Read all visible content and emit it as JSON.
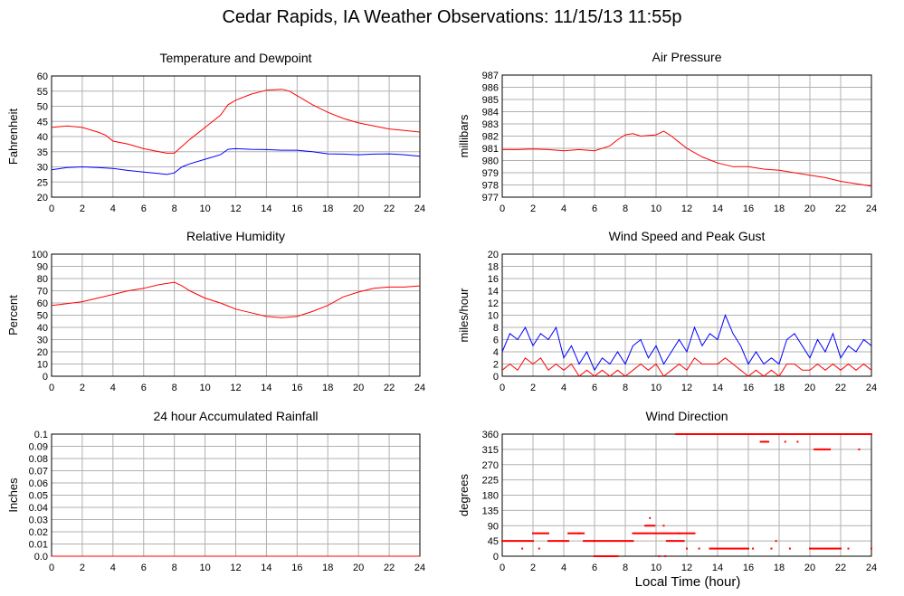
{
  "page": {
    "title": "Cedar Rapids, IA Weather Observations: 11/15/13 11:55p",
    "x_axis_title": "Local Time (hour)"
  },
  "colors": {
    "red": "#ff0000",
    "blue": "#0000ff",
    "grid": "#b0b0b0",
    "frame": "#000000"
  },
  "chart_data": [
    {
      "id": "temp",
      "type": "line",
      "title": "Temperature and Dewpoint",
      "ylabel": "Fahrenheit",
      "xlim": [
        0,
        24
      ],
      "xticks": [
        0,
        2,
        4,
        6,
        8,
        10,
        12,
        14,
        16,
        18,
        20,
        22,
        24
      ],
      "ylim": [
        20,
        60
      ],
      "yticks": [
        "20",
        "25",
        "30",
        "35",
        "40",
        "45",
        "50",
        "55",
        "60"
      ],
      "grid": true,
      "series": [
        {
          "color": "red",
          "x": [
            0,
            1,
            2,
            3,
            3.5,
            4,
            5,
            6,
            7,
            7.5,
            8,
            9,
            10,
            11,
            11.5,
            12,
            13,
            14,
            15,
            15.5,
            16,
            17,
            18,
            19,
            20,
            21,
            22,
            23,
            24
          ],
          "y": [
            43,
            43.5,
            43,
            41.5,
            40.5,
            38.5,
            37.5,
            36,
            35,
            34.5,
            34.5,
            39,
            43,
            47,
            50.5,
            52,
            54,
            55.3,
            55.6,
            55,
            53.5,
            50.5,
            48,
            46,
            44.5,
            43.5,
            42.5,
            42,
            41.5
          ]
        },
        {
          "color": "blue",
          "x": [
            0,
            1,
            2,
            3,
            4,
            5,
            6,
            7,
            7.5,
            8,
            8.5,
            9,
            10,
            11,
            11.5,
            12,
            13,
            14,
            15,
            16,
            17,
            18,
            19,
            20,
            21,
            22,
            23,
            24
          ],
          "y": [
            29,
            29.8,
            30,
            29.8,
            29.5,
            28.8,
            28.3,
            27.8,
            27.5,
            28,
            30,
            31,
            32.5,
            34,
            35.8,
            36,
            35.8,
            35.7,
            35.5,
            35.5,
            35,
            34.3,
            34.2,
            34,
            34.2,
            34.3,
            34,
            33.5
          ]
        }
      ]
    },
    {
      "id": "pressure",
      "type": "line",
      "title": "Air Pressure",
      "ylabel": "millibars",
      "xlim": [
        0,
        24
      ],
      "xticks": [
        0,
        2,
        4,
        6,
        8,
        10,
        12,
        14,
        16,
        18,
        20,
        22,
        24
      ],
      "ylim": [
        977,
        987
      ],
      "yticks": [
        "977",
        "978",
        "979",
        "980",
        "981",
        "982",
        "983",
        "984",
        "985",
        "986",
        "987"
      ],
      "grid": true,
      "series": [
        {
          "color": "red",
          "x": [
            0,
            1,
            2,
            3,
            4,
            5,
            6,
            7,
            7.5,
            8,
            8.5,
            9,
            10,
            10.5,
            11,
            11.5,
            12,
            13,
            14,
            15,
            16,
            17,
            18,
            19,
            20,
            21,
            22,
            23,
            24
          ],
          "y": [
            980.9,
            980.9,
            980.95,
            980.9,
            980.8,
            980.9,
            980.8,
            981.2,
            981.7,
            982.1,
            982.2,
            982.0,
            982.1,
            982.4,
            982.0,
            981.5,
            981.0,
            980.3,
            979.8,
            979.5,
            979.5,
            979.3,
            979.2,
            979.0,
            978.8,
            978.6,
            978.3,
            978.1,
            977.9
          ]
        }
      ]
    },
    {
      "id": "humidity",
      "type": "line",
      "title": "Relative Humidity",
      "ylabel": "Percent",
      "xlim": [
        0,
        24
      ],
      "xticks": [
        0,
        2,
        4,
        6,
        8,
        10,
        12,
        14,
        16,
        18,
        20,
        22,
        24
      ],
      "ylim": [
        0,
        100
      ],
      "yticks": [
        "0",
        "10",
        "20",
        "30",
        "40",
        "50",
        "60",
        "70",
        "80",
        "90",
        "100"
      ],
      "grid": true,
      "series": [
        {
          "color": "red",
          "x": [
            0,
            1,
            2,
            3,
            4,
            5,
            6,
            7,
            8,
            8.5,
            9,
            10,
            11,
            12,
            13,
            14,
            15,
            16,
            17,
            18,
            19,
            20,
            21,
            22,
            23,
            24
          ],
          "y": [
            58,
            59.5,
            61,
            64,
            67,
            70,
            72,
            75,
            77,
            74,
            70,
            64,
            60,
            55,
            52,
            49,
            48,
            49,
            53,
            58,
            65,
            69,
            72,
            73,
            73,
            74
          ]
        }
      ]
    },
    {
      "id": "wind",
      "type": "line",
      "title": "Wind Speed and Peak Gust",
      "ylabel": "miles/hour",
      "xlim": [
        0,
        24
      ],
      "xticks": [
        0,
        2,
        4,
        6,
        8,
        10,
        12,
        14,
        16,
        18,
        20,
        22,
        24
      ],
      "ylim": [
        0,
        20
      ],
      "yticks": [
        "0",
        "2",
        "4",
        "6",
        "8",
        "10",
        "12",
        "14",
        "16",
        "18",
        "20"
      ],
      "grid": true,
      "series": [
        {
          "color": "blue",
          "x": [
            0,
            0.5,
            1,
            1.5,
            2,
            2.5,
            3,
            3.5,
            4,
            4.5,
            5,
            5.5,
            6,
            6.5,
            7,
            7.5,
            8,
            8.5,
            9,
            9.5,
            10,
            10.5,
            11,
            11.5,
            12,
            12.5,
            13,
            13.5,
            14,
            14.5,
            15,
            15.5,
            16,
            16.5,
            17,
            17.5,
            18,
            18.5,
            19,
            19.5,
            20,
            20.5,
            21,
            21.5,
            22,
            22.5,
            23,
            23.5,
            24
          ],
          "y": [
            4,
            7,
            6,
            8,
            5,
            7,
            6,
            8,
            3,
            5,
            2,
            4,
            1,
            3,
            2,
            4,
            2,
            5,
            6,
            3,
            5,
            2,
            4,
            6,
            4,
            8,
            5,
            7,
            6,
            10,
            7,
            5,
            2,
            4,
            2,
            3,
            2,
            6,
            7,
            5,
            3,
            6,
            4,
            7,
            3,
            5,
            4,
            6,
            5
          ]
        },
        {
          "color": "red",
          "x": [
            0,
            0.5,
            1,
            1.5,
            2,
            2.5,
            3,
            3.5,
            4,
            4.5,
            5,
            5.5,
            6,
            6.5,
            7,
            7.5,
            8,
            8.5,
            9,
            9.5,
            10,
            10.5,
            11,
            11.5,
            12,
            12.5,
            13,
            13.5,
            14,
            14.5,
            15,
            15.5,
            16,
            16.5,
            17,
            17.5,
            18,
            18.5,
            19,
            19.5,
            20,
            20.5,
            21,
            21.5,
            22,
            22.5,
            23,
            23.5,
            24
          ],
          "y": [
            1,
            2,
            1,
            3,
            2,
            3,
            1,
            2,
            1,
            2,
            0,
            1,
            0,
            1,
            0,
            1,
            0,
            1,
            2,
            1,
            2,
            0,
            1,
            2,
            1,
            3,
            2,
            2,
            2,
            3,
            2,
            1,
            0,
            1,
            0,
            1,
            0,
            2,
            2,
            1,
            1,
            2,
            1,
            2,
            1,
            2,
            1,
            2,
            1
          ]
        }
      ]
    },
    {
      "id": "rain",
      "type": "line",
      "title": "24 hour Accumulated Rainfall",
      "ylabel": "Inches",
      "xlim": [
        0,
        24
      ],
      "xticks": [
        0,
        2,
        4,
        6,
        8,
        10,
        12,
        14,
        16,
        18,
        20,
        22,
        24
      ],
      "ylim": [
        0,
        0.1
      ],
      "yticks": [
        "0.0",
        "0.01",
        "0.02",
        "0.03",
        "0.04",
        "0.05",
        "0.06",
        "0.07",
        "0.08",
        "0.09",
        "0.1"
      ],
      "grid": true,
      "series": [
        {
          "color": "red",
          "x": [
            0,
            24
          ],
          "y": [
            0,
            0
          ]
        }
      ]
    },
    {
      "id": "direction",
      "type": "scatter",
      "title": "Wind Direction",
      "ylabel": "degrees",
      "xlim": [
        0,
        24
      ],
      "xticks": [
        0,
        2,
        4,
        6,
        8,
        10,
        12,
        14,
        16,
        18,
        20,
        22,
        24
      ],
      "ylim": [
        0,
        360
      ],
      "yticks": [
        "0",
        "45",
        "90",
        "135",
        "180",
        "225",
        "270",
        "315",
        "360"
      ],
      "grid": true,
      "series": [
        {
          "color": "red",
          "segments": [
            {
              "x": [
                0,
                2.0
              ],
              "y": 45
            },
            {
              "x": [
                2.0,
                3.0
              ],
              "y": 67.5
            },
            {
              "x": [
                3.0,
                4.3
              ],
              "y": 45
            },
            {
              "x": [
                4.3,
                5.3
              ],
              "y": 67.5
            },
            {
              "x": [
                5.3,
                6.0
              ],
              "y": 45
            },
            {
              "x": [
                6.0,
                8.5
              ],
              "y": 45
            },
            {
              "x": [
                6.0,
                7.5
              ],
              "y": 0
            },
            {
              "x": [
                8.5,
                11.5
              ],
              "y": 67.5
            },
            {
              "x": [
                9.3,
                9.9
              ],
              "y": 90
            },
            {
              "x": [
                10.7,
                11.8
              ],
              "y": 45
            },
            {
              "x": [
                11.5,
                12.5
              ],
              "y": 67.5
            },
            {
              "x": [
                11.3,
                18.2
              ],
              "y": 360
            },
            {
              "x": [
                13.5,
                16.0
              ],
              "y": 22.5
            },
            {
              "x": [
                16.8,
                17.3
              ],
              "y": 337.5
            },
            {
              "x": [
                18.2,
                24
              ],
              "y": 360
            },
            {
              "x": [
                20.3,
                21.3
              ],
              "y": 315
            },
            {
              "x": [
                20.0,
                22.0
              ],
              "y": 22.5
            }
          ],
          "points": [
            {
              "x": 1.3,
              "y": 22.5
            },
            {
              "x": 2.4,
              "y": 22.5
            },
            {
              "x": 5.0,
              "y": 67.5
            },
            {
              "x": 9.6,
              "y": 112.5
            },
            {
              "x": 10.2,
              "y": 0
            },
            {
              "x": 10.6,
              "y": 0
            },
            {
              "x": 10.5,
              "y": 90
            },
            {
              "x": 12.0,
              "y": 22.5
            },
            {
              "x": 12.8,
              "y": 22.5
            },
            {
              "x": 16.3,
              "y": 22.5
            },
            {
              "x": 17.5,
              "y": 22.5
            },
            {
              "x": 17.8,
              "y": 45
            },
            {
              "x": 18.4,
              "y": 337.5
            },
            {
              "x": 18.7,
              "y": 22.5
            },
            {
              "x": 19.2,
              "y": 337.5
            },
            {
              "x": 22.5,
              "y": 22.5
            },
            {
              "x": 23.2,
              "y": 315
            },
            {
              "x": 24,
              "y": 22.5
            }
          ]
        }
      ]
    }
  ]
}
